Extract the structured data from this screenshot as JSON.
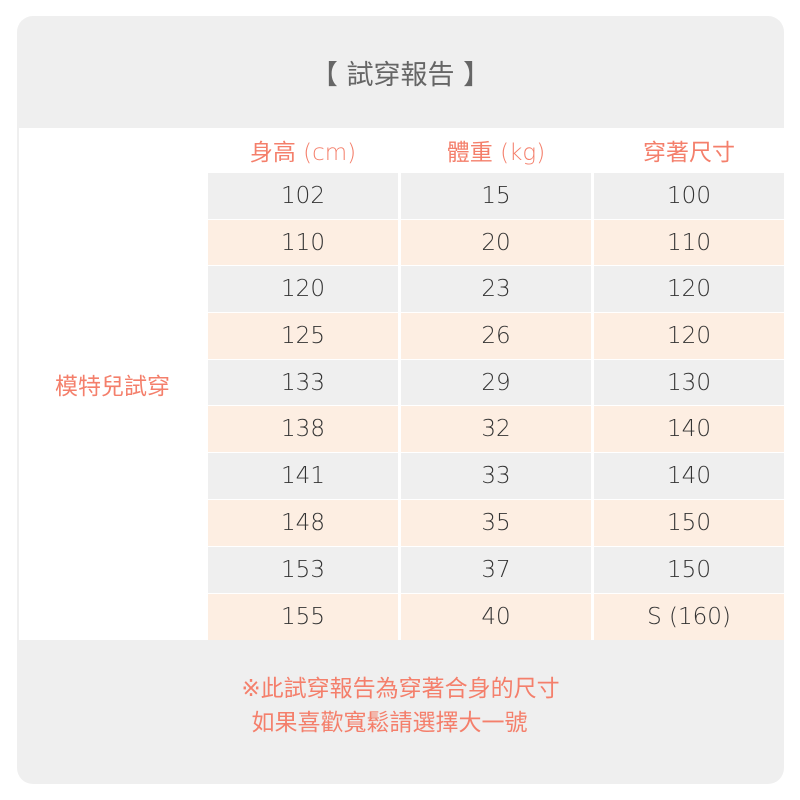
{
  "title": "【 試穿報告 】",
  "row_label": "模特兒試穿",
  "columns": [
    "身高 (cm)",
    "體重 (kg)",
    "穿著尺寸"
  ],
  "rows": [
    [
      "102",
      "15",
      "100"
    ],
    [
      "110",
      "20",
      "110"
    ],
    [
      "120",
      "23",
      "120"
    ],
    [
      "125",
      "26",
      "120"
    ],
    [
      "133",
      "29",
      "130"
    ],
    [
      "138",
      "32",
      "140"
    ],
    [
      "141",
      "33",
      "140"
    ],
    [
      "148",
      "35",
      "150"
    ],
    [
      "153",
      "37",
      "150"
    ],
    [
      "155",
      "40",
      "S (160)"
    ]
  ],
  "note": [
    "※此試穿報告為穿著合身的尺寸",
    "如果喜歡寬鬆請選擇大一號"
  ],
  "colors": {
    "accent": "#f47f6b",
    "row_gray": "#efefef",
    "row_peach": "#fdeee2"
  }
}
